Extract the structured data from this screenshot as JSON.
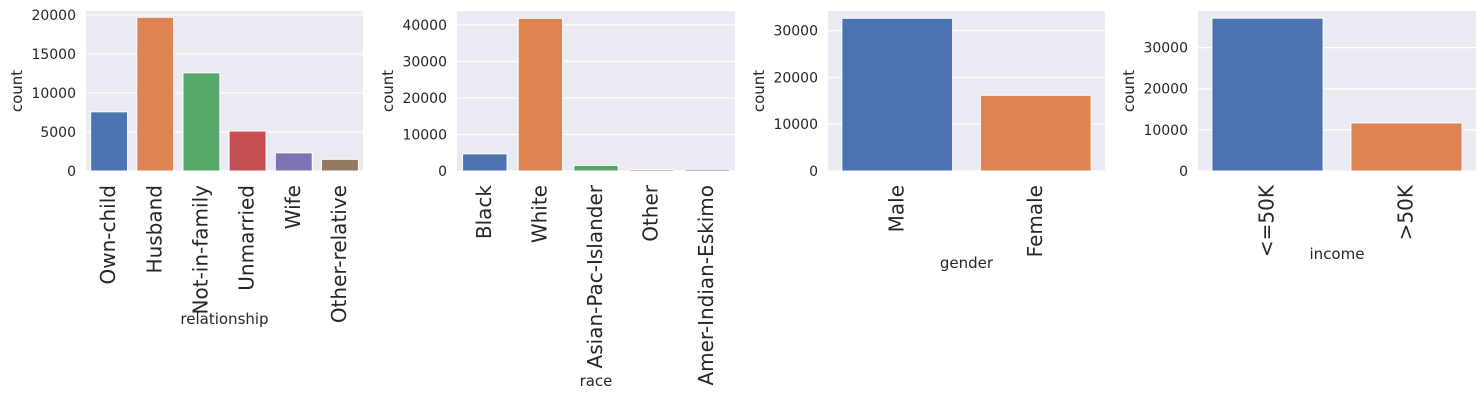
{
  "chart_data": [
    {
      "type": "bar",
      "xlabel": "relationship",
      "ylabel": "count",
      "ylim": [
        0,
        20500
      ],
      "yticks": [
        0,
        5000,
        10000,
        15000,
        20000
      ],
      "categories": [
        "Own-child",
        "Husband",
        "Not-in-family",
        "Unmarried",
        "Wife",
        "Other-relative"
      ],
      "values": [
        7580,
        19700,
        12580,
        5120,
        2330,
        1500
      ],
      "colors": [
        "#4c72b0",
        "#dd8452",
        "#55a868",
        "#c44e52",
        "#8172b3",
        "#937860"
      ],
      "grid": true
    },
    {
      "type": "bar",
      "xlabel": "race",
      "ylabel": "count",
      "ylim": [
        0,
        43800
      ],
      "yticks": [
        0,
        10000,
        20000,
        30000,
        40000
      ],
      "categories": [
        "Black",
        "White",
        "Asian-Pac-Islander",
        "Other",
        "Amer-Indian-Eskimo"
      ],
      "values": [
        4700,
        41800,
        1520,
        400,
        470
      ],
      "colors": [
        "#4c72b0",
        "#dd8452",
        "#55a868",
        "#c44e52",
        "#8172b3"
      ],
      "grid": true
    },
    {
      "type": "bar",
      "xlabel": "gender",
      "ylabel": "count",
      "ylim": [
        0,
        34200
      ],
      "yticks": [
        0,
        10000,
        20000,
        30000
      ],
      "categories": [
        "Male",
        "Female"
      ],
      "values": [
        32650,
        16190
      ],
      "colors": [
        "#4c72b0",
        "#dd8452"
      ],
      "grid": true
    },
    {
      "type": "bar",
      "xlabel": "income",
      "ylabel": "count",
      "ylim": [
        0,
        38900
      ],
      "yticks": [
        0,
        10000,
        20000,
        30000
      ],
      "categories": [
        "<=50K",
        ">50K"
      ],
      "values": [
        37160,
        11690
      ],
      "colors": [
        "#4c72b0",
        "#dd8452"
      ],
      "grid": true
    }
  ]
}
